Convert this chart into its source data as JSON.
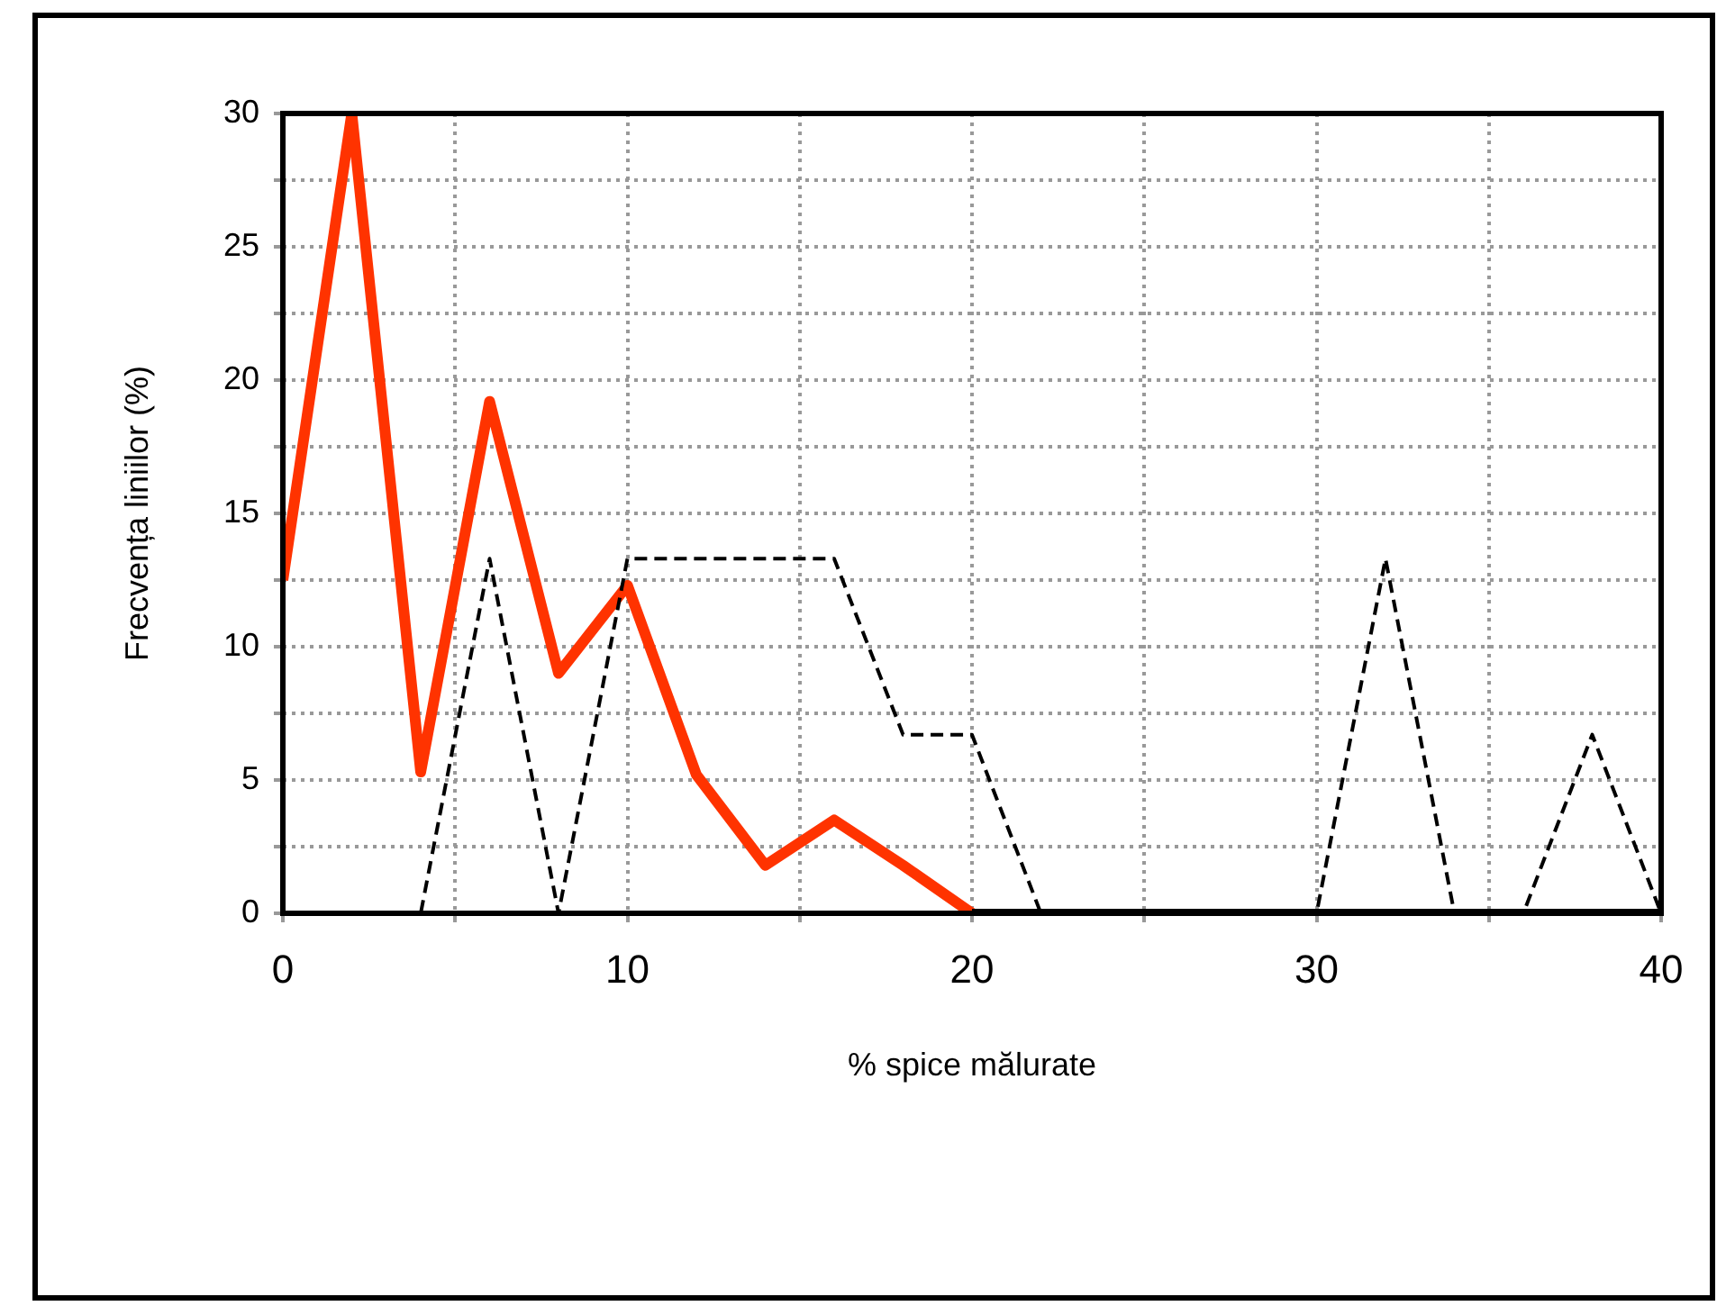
{
  "chart_data": {
    "type": "line",
    "xlabel": "% spice mălurate",
    "ylabel": "Frecvența liniilor (%)",
    "xlim": [
      0,
      40
    ],
    "xticks": [
      0,
      {
        "value": 5,
        "label": null
      },
      10,
      {
        "value": 15,
        "label": null
      },
      20,
      {
        "value": 25,
        "label": null
      },
      30,
      {
        "value": 35,
        "label": null
      },
      40
    ],
    "ylim": [
      0,
      30
    ],
    "yticks": [
      0,
      {
        "value": 2.5,
        "label": null
      },
      5,
      {
        "value": 7.5,
        "label": null
      },
      10,
      {
        "value": 12.5,
        "label": null
      },
      15,
      {
        "value": 17.5,
        "label": null
      },
      20,
      {
        "value": 22.5,
        "label": null
      },
      25,
      {
        "value": 27.5,
        "label": null
      },
      30
    ],
    "grid": true,
    "marker": "none",
    "series": [
      {
        "color": "#ff3300",
        "line_style": "solid",
        "x": [
          0,
          2,
          4,
          6,
          8,
          10,
          12,
          14,
          16,
          18,
          20
        ],
        "values": [
          12.5,
          30,
          5.3,
          19.2,
          9,
          12.3,
          5.2,
          1.8,
          3.5,
          1.8,
          0
        ]
      },
      {
        "color": "#000000",
        "line_style": "dashed",
        "x": [
          0,
          2,
          4,
          6,
          8,
          10,
          12,
          14,
          16,
          18,
          20,
          22,
          24,
          26,
          28,
          30,
          32,
          34,
          36,
          38,
          40
        ],
        "values": [
          0,
          0,
          0,
          13.3,
          0,
          13.3,
          13.3,
          13.3,
          13.3,
          6.7,
          6.7,
          0,
          0,
          0,
          0,
          0,
          13.3,
          0,
          0,
          6.7,
          0
        ]
      },
      {
        "color": "#000000",
        "line_style": "solid",
        "x": [
          20,
          40
        ],
        "values": [
          0,
          0
        ]
      }
    ]
  }
}
